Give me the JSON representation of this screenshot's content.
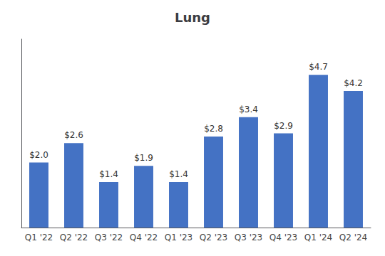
{
  "chart_data": {
    "type": "bar",
    "title": "Lung",
    "categories": [
      "Q1 '22",
      "Q2 '22",
      "Q3 '22",
      "Q4 '22",
      "Q1 '23",
      "Q2 '23",
      "Q3 '23",
      "Q4 '23",
      "Q1 '24",
      "Q2 '24"
    ],
    "values": [
      2.0,
      2.6,
      1.4,
      1.9,
      1.4,
      2.8,
      3.4,
      2.9,
      4.7,
      4.2
    ],
    "value_labels": [
      "$2.0",
      "$2.6",
      "$1.4",
      "$1.9",
      "$1.4",
      "$2.8",
      "$3.4",
      "$2.9",
      "$4.7",
      "$4.2"
    ],
    "data_labels": true,
    "color": "#4472C4",
    "ylim": [
      0,
      5.8
    ],
    "grid": false,
    "tick_labels": "x"
  }
}
